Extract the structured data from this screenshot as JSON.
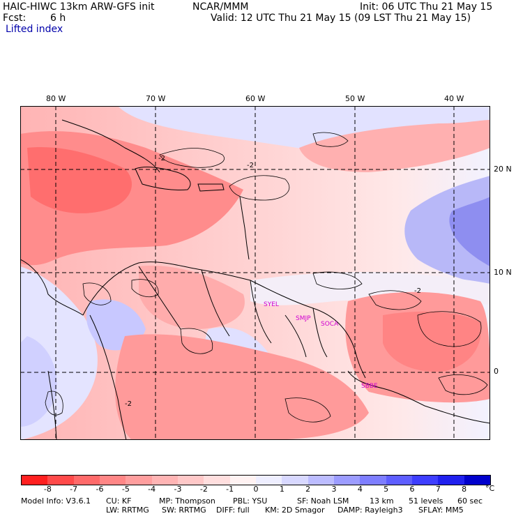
{
  "header": {
    "model": "HAIC-HIWC 13km ARW-GFS init",
    "org": "NCAR/MMM",
    "init": "Init: 06 UTC Thu 21 May 15",
    "fcst_label": "Fcst:",
    "fcst_value": "6 h",
    "valid": "Valid: 12 UTC Thu 21 May 15 (09 LST Thu 21 May 15)",
    "field": "Lifted index"
  },
  "axes": {
    "lon_labels": [
      "80 W",
      "70 W",
      "60 W",
      "50 W",
      "40 W"
    ],
    "lat_labels": [
      "20 N",
      "10 N",
      "0"
    ]
  },
  "stations": [
    "SYEL",
    "SMJP",
    "SOCA",
    "SBBE"
  ],
  "contour_label": "-2",
  "colorbar": {
    "unit": "°C",
    "labels": [
      "-8",
      "-7",
      "-6",
      "-5",
      "-4",
      "-3",
      "-2",
      "-1",
      "0",
      "1",
      "2",
      "3",
      "4",
      "5",
      "6",
      "7",
      "8"
    ],
    "colors": [
      "#ff2020",
      "#ff4a4a",
      "#ff6a6a",
      "#ff8686",
      "#ff9e9e",
      "#ffb4b4",
      "#ffc8c8",
      "#ffdede",
      "#fff2f2",
      "#eeeeff",
      "#d8d8ff",
      "#bcbcff",
      "#9c9cff",
      "#7e7eff",
      "#5e5eff",
      "#3e3eff",
      "#2020ee",
      "#0000cc"
    ]
  },
  "footer": {
    "line1": [
      "Model Info: V3.6.1",
      "CU: KF",
      "MP: Thompson",
      "PBL: YSU",
      "SF: Noah LSM",
      "13 km",
      "51 levels",
      "60 sec"
    ],
    "line2": [
      "LW: RRTMG",
      "SW: RRTMG",
      "DIFF: full",
      "KM: 2D Smagor",
      "DAMP: Rayleigh3",
      "SFLAY: MM5"
    ]
  }
}
